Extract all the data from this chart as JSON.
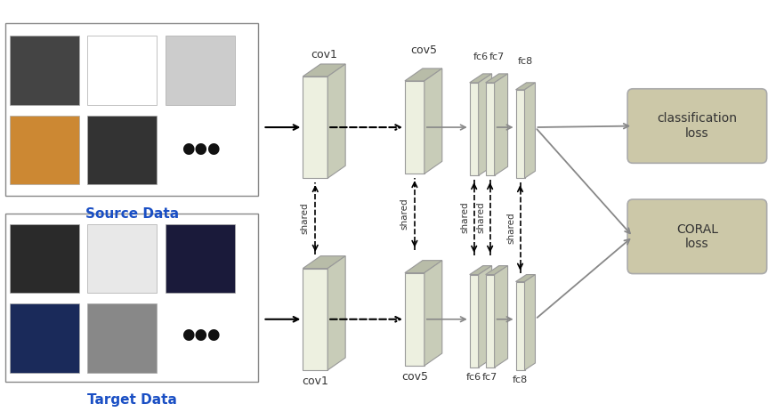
{
  "bg_color": "#ffffff",
  "block_face_color": "#edf0e0",
  "block_top_color": "#b8bca8",
  "block_side_color": "#c8ccb8",
  "block_edge_color": "#999999",
  "loss_box_color": "#ccc8a8",
  "loss_box_edge": "#aaaaaa",
  "source_label": "Source Data",
  "target_label": "Target Data",
  "source_label_color": "#1a4fc4",
  "target_label_color": "#1a4fc4",
  "classification_loss": "classification\nloss",
  "coral_loss": "CORAL\nloss",
  "label_fontsize": 11,
  "block_label_fontsize": 9,
  "shared_fontsize": 7.5
}
